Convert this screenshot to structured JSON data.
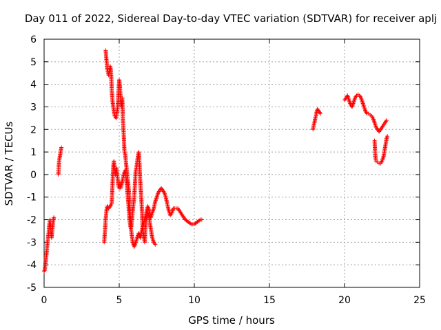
{
  "chart_data": {
    "type": "scatter",
    "title": "Day 011 of 2022, Sidereal Day-to-day VTEC variation (SDTVAR) for receiver aplj",
    "xlabel": "GPS time / hours",
    "ylabel": "SDTVAR / TECUs",
    "xlim": [
      0,
      25
    ],
    "ylim": [
      -5,
      6
    ],
    "xticks": [
      "0",
      "5",
      "10",
      "15",
      "20",
      "25"
    ],
    "yticks": [
      "-5",
      "-4",
      "-3",
      "-2",
      "-1",
      "0",
      "1",
      "2",
      "3",
      "4",
      "5",
      "6"
    ],
    "grid": true,
    "marker": "+",
    "marker_color": "#ff0000",
    "series": [
      {
        "name": "SDTVAR",
        "segments": [
          [
            [
              0.0,
              -4.3
            ],
            [
              0.05,
              -4.2
            ],
            [
              0.1,
              -3.9
            ],
            [
              0.15,
              -3.6
            ],
            [
              0.2,
              -3.2
            ],
            [
              0.25,
              -2.9
            ],
            [
              0.3,
              -2.6
            ],
            [
              0.35,
              -2.2
            ],
            [
              0.4,
              -2.0
            ],
            [
              0.45,
              -2.5
            ],
            [
              0.5,
              -2.8
            ],
            [
              0.55,
              -2.4
            ],
            [
              0.6,
              -2.1
            ],
            [
              0.65,
              -1.9
            ]
          ],
          [
            [
              0.95,
              0.0
            ],
            [
              1.0,
              0.6
            ],
            [
              1.05,
              0.8
            ],
            [
              1.1,
              1.0
            ],
            [
              1.15,
              1.2
            ]
          ],
          [
            [
              4.0,
              -3.0
            ],
            [
              4.05,
              -2.5
            ],
            [
              4.1,
              -2.0
            ],
            [
              4.15,
              -1.6
            ],
            [
              4.2,
              -1.4
            ],
            [
              4.3,
              -1.5
            ],
            [
              4.4,
              -1.4
            ],
            [
              4.5,
              -1.3
            ],
            [
              4.55,
              -0.5
            ],
            [
              4.6,
              0.3
            ],
            [
              4.65,
              0.6
            ],
            [
              4.7,
              0.2
            ],
            [
              4.75,
              0.0
            ],
            [
              4.8,
              0.3
            ],
            [
              4.85,
              0.1
            ],
            [
              4.9,
              -0.2
            ],
            [
              4.95,
              -0.5
            ],
            [
              5.0,
              -0.6
            ],
            [
              5.05,
              -0.4
            ],
            [
              5.1,
              -0.6
            ],
            [
              5.2,
              -0.3
            ],
            [
              5.3,
              0.0
            ],
            [
              5.4,
              0.2
            ],
            [
              5.5,
              -0.4
            ],
            [
              5.6,
              -1.2
            ],
            [
              5.7,
              -2.1
            ],
            [
              5.8,
              -2.5
            ],
            [
              5.9,
              -3.0
            ],
            [
              6.0,
              -3.2
            ],
            [
              6.1,
              -3.0
            ],
            [
              6.2,
              -2.8
            ],
            [
              6.3,
              -2.6
            ],
            [
              6.4,
              -2.8
            ],
            [
              6.5,
              -2.5
            ],
            [
              6.6,
              -2.2
            ],
            [
              6.7,
              -2.0
            ],
            [
              6.8,
              -1.7
            ],
            [
              6.9,
              -1.4
            ],
            [
              7.0,
              -1.6
            ],
            [
              7.1,
              -1.9
            ],
            [
              7.2,
              -1.7
            ],
            [
              7.3,
              -1.5
            ],
            [
              7.4,
              -1.2
            ],
            [
              7.5,
              -1.0
            ],
            [
              7.6,
              -0.8
            ],
            [
              7.7,
              -0.7
            ],
            [
              7.8,
              -0.6
            ],
            [
              7.9,
              -0.7
            ],
            [
              8.0,
              -0.8
            ],
            [
              8.1,
              -1.0
            ],
            [
              8.2,
              -1.3
            ],
            [
              8.3,
              -1.6
            ],
            [
              8.4,
              -1.8
            ],
            [
              8.5,
              -1.7
            ],
            [
              8.6,
              -1.5
            ],
            [
              8.7,
              -1.5
            ],
            [
              8.8,
              -1.5
            ],
            [
              8.9,
              -1.5
            ],
            [
              9.0,
              -1.6
            ],
            [
              9.2,
              -1.8
            ],
            [
              9.4,
              -2.0
            ],
            [
              9.6,
              -2.1
            ],
            [
              9.8,
              -2.2
            ],
            [
              10.0,
              -2.2
            ],
            [
              10.2,
              -2.1
            ],
            [
              10.4,
              -2.0
            ],
            [
              10.5,
              -2.0
            ]
          ],
          [
            [
              4.1,
              5.5
            ],
            [
              4.15,
              5.1
            ],
            [
              4.2,
              4.7
            ],
            [
              4.3,
              4.4
            ],
            [
              4.4,
              4.8
            ],
            [
              4.45,
              4.6
            ],
            [
              4.5,
              3.8
            ],
            [
              4.55,
              3.3
            ],
            [
              4.6,
              3.0
            ],
            [
              4.7,
              2.6
            ],
            [
              4.8,
              2.5
            ],
            [
              4.9,
              3.0
            ],
            [
              5.0,
              4.2
            ],
            [
              5.05,
              3.9
            ],
            [
              5.1,
              3.2
            ],
            [
              5.15,
              3.0
            ],
            [
              5.2,
              3.4
            ],
            [
              5.25,
              2.4
            ],
            [
              5.3,
              1.8
            ],
            [
              5.35,
              1.0
            ],
            [
              5.4,
              0.9
            ],
            [
              5.5,
              0.2
            ],
            [
              5.6,
              -0.4
            ],
            [
              5.65,
              -0.8
            ],
            [
              5.7,
              -1.4
            ],
            [
              5.75,
              -2.0
            ],
            [
              5.8,
              -2.3
            ],
            [
              5.85,
              -2.0
            ],
            [
              5.9,
              -1.6
            ],
            [
              6.0,
              -1.0
            ],
            [
              6.05,
              -0.4
            ],
            [
              6.1,
              0.2
            ],
            [
              6.15,
              0.3
            ],
            [
              6.2,
              0.6
            ],
            [
              6.3,
              1.0
            ],
            [
              6.35,
              0.5
            ],
            [
              6.4,
              -0.3
            ],
            [
              6.45,
              -0.8
            ],
            [
              6.5,
              -1.4
            ],
            [
              6.55,
              -2.2
            ],
            [
              6.6,
              -2.6
            ],
            [
              6.7,
              -3.0
            ],
            [
              6.75,
              -2.3
            ],
            [
              6.8,
              -2.0
            ],
            [
              6.9,
              -1.7
            ],
            [
              7.0,
              -1.9
            ],
            [
              7.1,
              -2.4
            ],
            [
              7.2,
              -2.8
            ],
            [
              7.3,
              -3.0
            ],
            [
              7.4,
              -3.1
            ]
          ],
          [
            [
              17.9,
              2.0
            ],
            [
              17.95,
              2.2
            ],
            [
              18.0,
              2.3
            ],
            [
              18.05,
              2.5
            ],
            [
              18.1,
              2.6
            ],
            [
              18.15,
              2.8
            ],
            [
              18.2,
              2.9
            ],
            [
              18.3,
              2.8
            ],
            [
              18.4,
              2.7
            ]
          ],
          [
            [
              20.0,
              3.3
            ],
            [
              20.1,
              3.4
            ],
            [
              20.2,
              3.5
            ],
            [
              20.3,
              3.3
            ],
            [
              20.4,
              3.1
            ],
            [
              20.5,
              3.0
            ],
            [
              20.6,
              3.2
            ],
            [
              20.7,
              3.4
            ],
            [
              20.8,
              3.5
            ],
            [
              20.9,
              3.55
            ],
            [
              21.0,
              3.5
            ],
            [
              21.1,
              3.4
            ],
            [
              21.2,
              3.2
            ],
            [
              21.3,
              3.0
            ],
            [
              21.4,
              2.8
            ],
            [
              21.5,
              2.7
            ],
            [
              21.6,
              2.7
            ],
            [
              21.7,
              2.65
            ],
            [
              21.8,
              2.6
            ],
            [
              21.9,
              2.5
            ],
            [
              22.0,
              2.3
            ],
            [
              22.1,
              2.1
            ],
            [
              22.2,
              2.0
            ],
            [
              22.3,
              1.9
            ],
            [
              22.4,
              2.0
            ],
            [
              22.5,
              2.1
            ],
            [
              22.6,
              2.2
            ],
            [
              22.7,
              2.3
            ],
            [
              22.8,
              2.4
            ]
          ],
          [
            [
              22.0,
              1.5
            ],
            [
              22.05,
              0.8
            ],
            [
              22.1,
              0.6
            ],
            [
              22.2,
              0.55
            ],
            [
              22.3,
              0.5
            ],
            [
              22.4,
              0.5
            ],
            [
              22.5,
              0.6
            ],
            [
              22.6,
              0.8
            ],
            [
              22.65,
              1.0
            ],
            [
              22.7,
              1.2
            ],
            [
              22.75,
              1.4
            ],
            [
              22.8,
              1.6
            ],
            [
              22.85,
              1.7
            ]
          ]
        ]
      }
    ]
  }
}
